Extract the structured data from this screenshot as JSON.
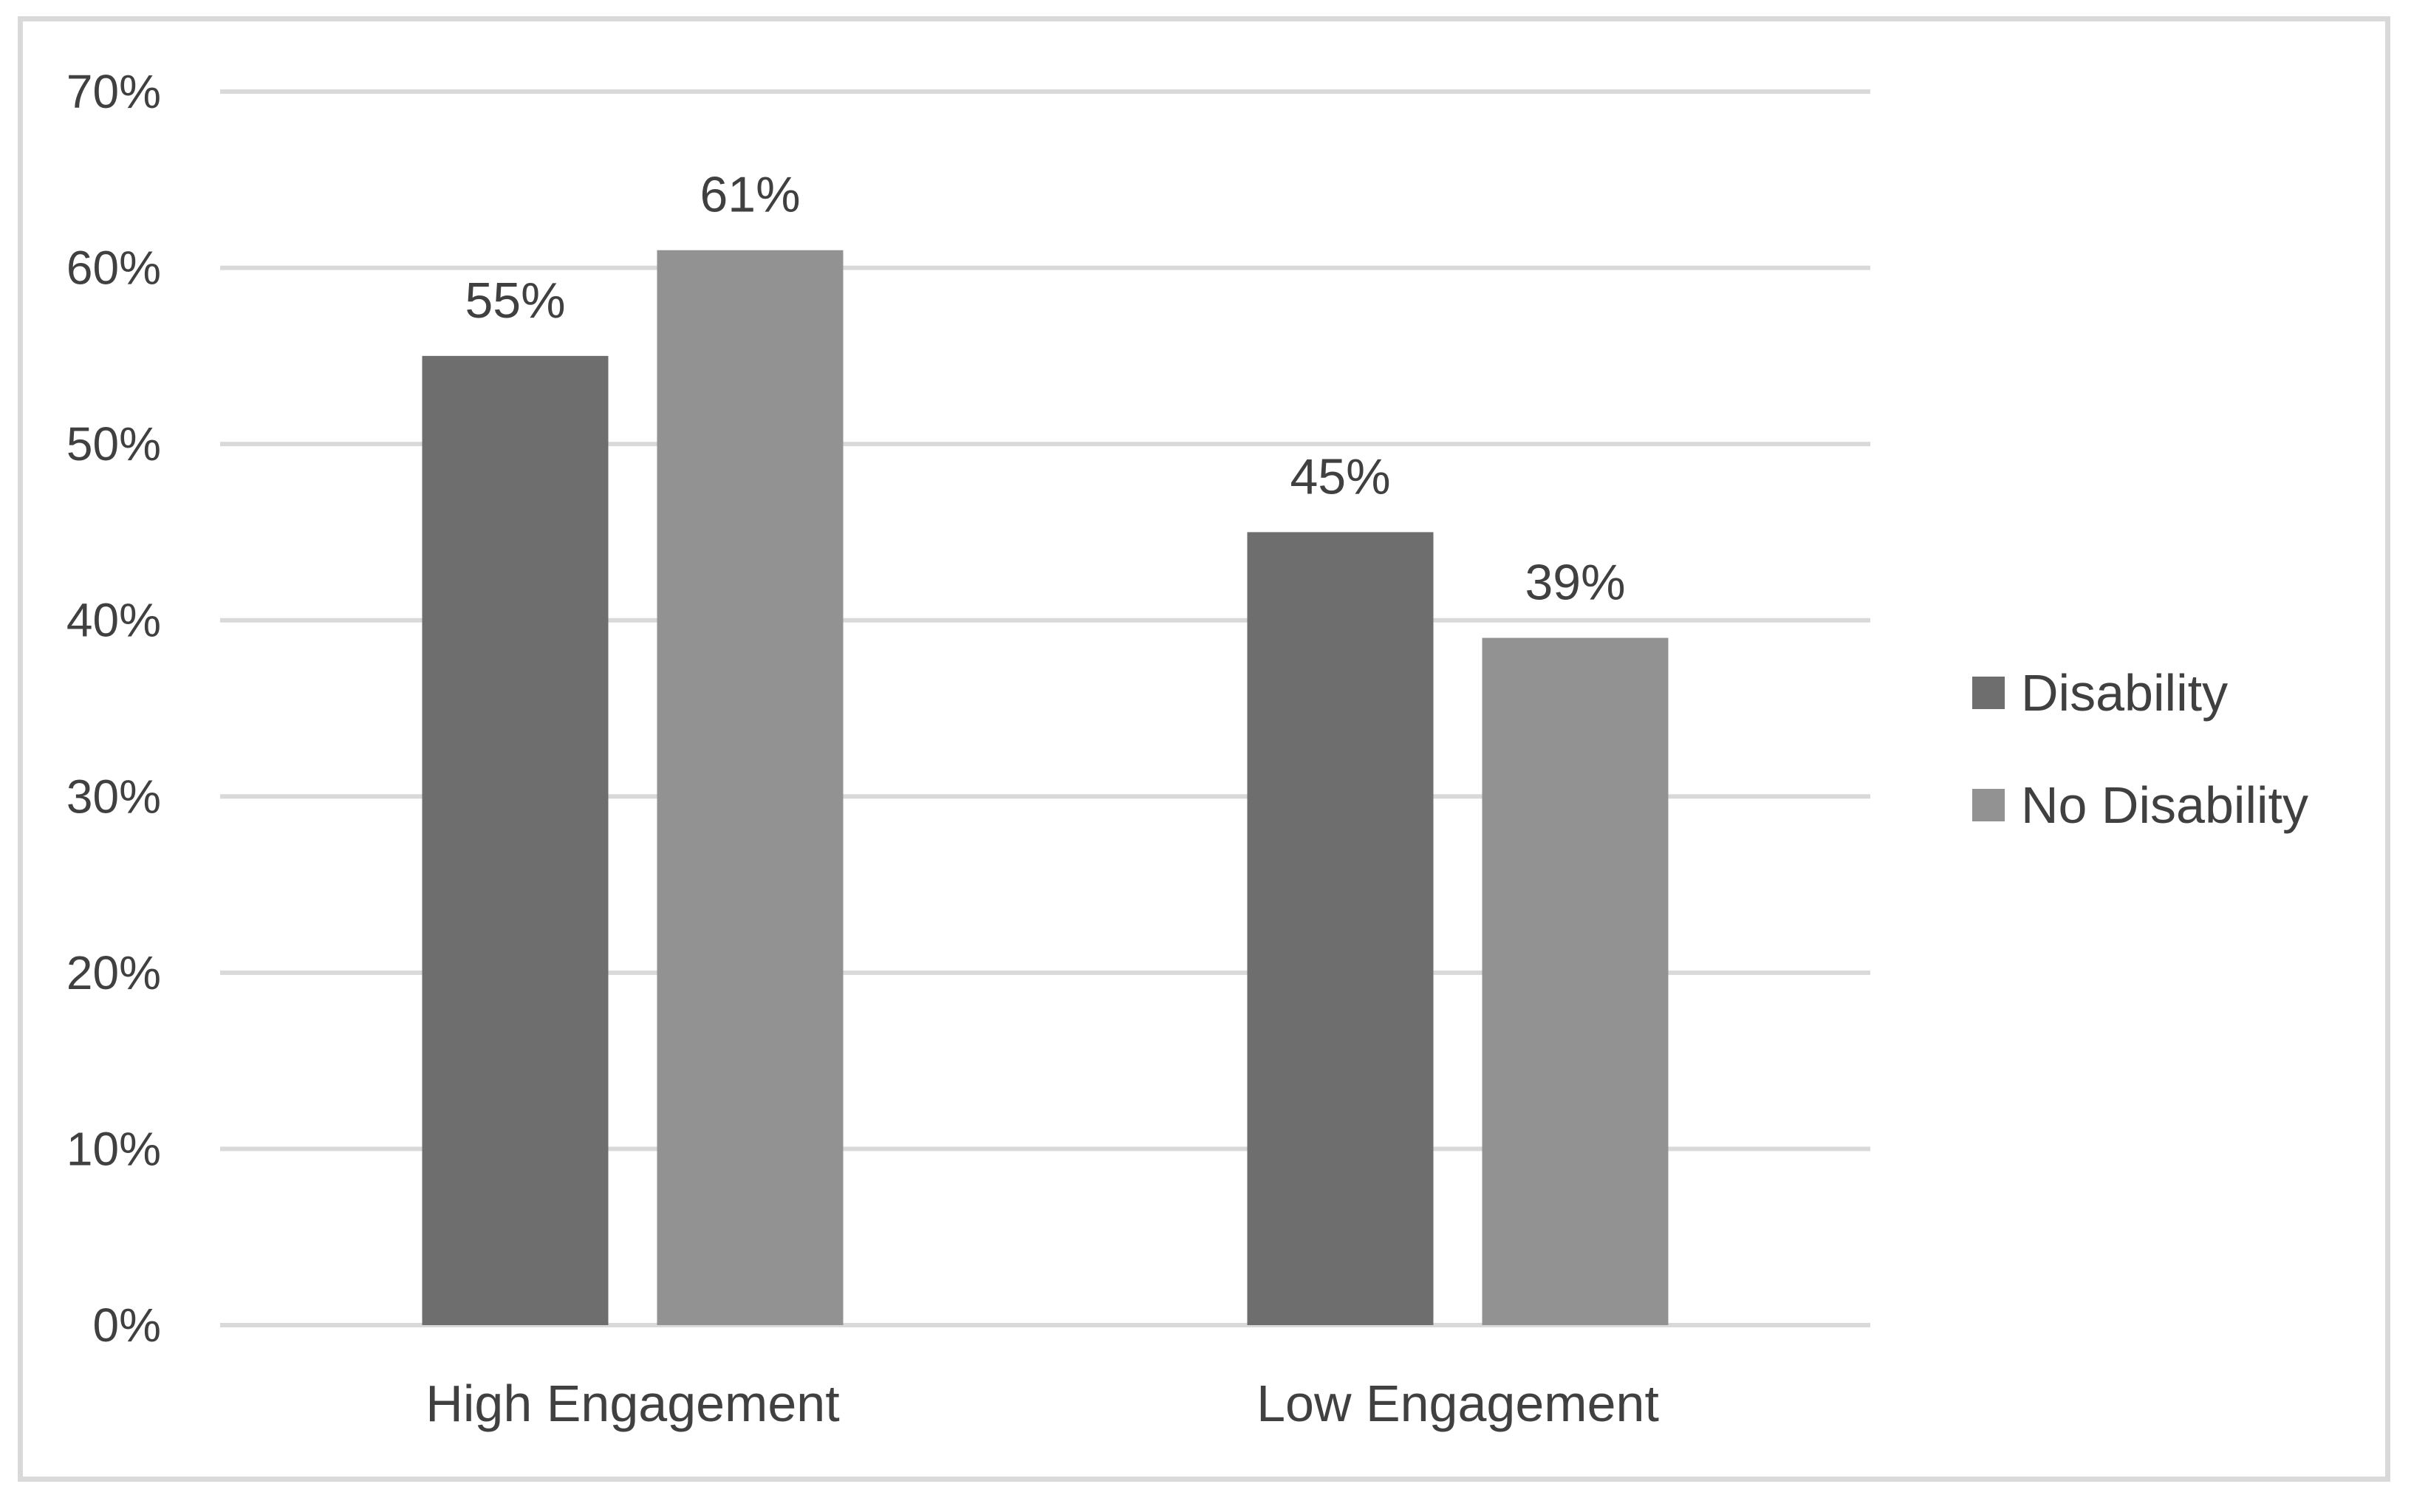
{
  "chart_data": {
    "type": "bar",
    "title": "",
    "xlabel": "",
    "ylabel": "",
    "categories": [
      "High Engagement",
      "Low Engagement"
    ],
    "series": [
      {
        "name": "Disability",
        "values": [
          55,
          45
        ],
        "labels": [
          "55%",
          "45%"
        ],
        "color": "#6e6e6e"
      },
      {
        "name": "No Disability",
        "values": [
          61,
          39
        ],
        "labels": [
          "61%",
          "39%"
        ],
        "color": "#929292"
      }
    ],
    "ylim": [
      0,
      70
    ],
    "yticks": [
      0,
      10,
      20,
      30,
      40,
      50,
      60,
      70
    ],
    "ytick_labels": [
      "0%",
      "10%",
      "20%",
      "30%",
      "40%",
      "50%",
      "60%",
      "70%"
    ],
    "grid": true,
    "gridline_color": "#d9d9d9",
    "legend_position": "right"
  }
}
